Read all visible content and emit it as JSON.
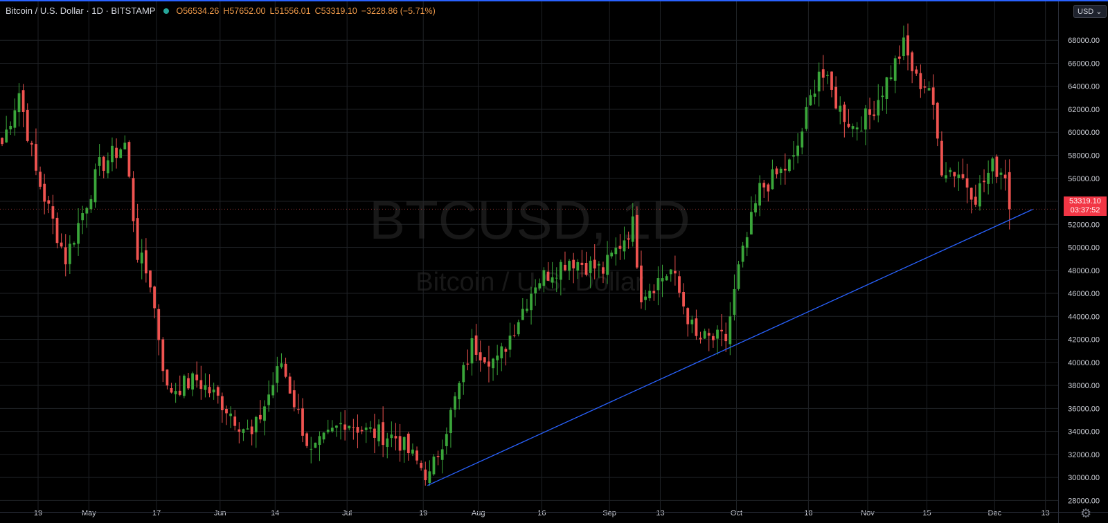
{
  "header": {
    "symbol_title": "Bitcoin / U.S. Dollar · 1D · BITSTAMP",
    "open": "O56534.26",
    "high": "H57652.00",
    "low": "L51556.01",
    "close": "C53319.10",
    "change": "−3228.86 (−5.71%)"
  },
  "currency_button": "USD",
  "watermark": {
    "main": "BTCUSD, 1D",
    "sub": "Bitcoin / U.S. Dollar"
  },
  "last_price": {
    "value": "53319.10",
    "countdown": "03:37:52"
  },
  "colors": {
    "up": "#26a69a",
    "up_body": "#3aa63a",
    "down": "#ef5350",
    "trendline": "#2962ff",
    "grid": "#1f2226",
    "axis_text": "#d1d4dc"
  },
  "chart_data": {
    "type": "candlestick",
    "title": "Bitcoin / U.S. Dollar, 1D, BITSTAMP",
    "x_ticks": [
      "19",
      "May",
      "17",
      "Jun",
      "14",
      "Jul",
      "19",
      "Aug",
      "16",
      "Sep",
      "13",
      "Oct",
      "18",
      "Nov",
      "15",
      "Dec",
      "13"
    ],
    "y_ticks": [
      "28000.00",
      "30000.00",
      "32000.00",
      "34000.00",
      "36000.00",
      "38000.00",
      "40000.00",
      "42000.00",
      "44000.00",
      "46000.00",
      "48000.00",
      "50000.00",
      "52000.00",
      "54000.00",
      "56000.00",
      "58000.00",
      "60000.00",
      "62000.00",
      "64000.00",
      "66000.00",
      "68000.00"
    ],
    "ylim": [
      27000,
      71500
    ],
    "date_range": [
      "2021-04-10",
      "2021-12-16"
    ],
    "grid": true,
    "anchors": [
      [
        "2021-04-10",
        59000
      ],
      [
        "2021-04-14",
        63500
      ],
      [
        "2021-04-18",
        56500
      ],
      [
        "2021-04-25",
        49000
      ],
      [
        "2021-05-03",
        57000
      ],
      [
        "2021-05-09",
        59000
      ],
      [
        "2021-05-12",
        49500
      ],
      [
        "2021-05-15",
        47000
      ],
      [
        "2021-05-19",
        37500
      ],
      [
        "2021-05-26",
        38500
      ],
      [
        "2021-06-01",
        36500
      ],
      [
        "2021-06-08",
        33500
      ],
      [
        "2021-06-15",
        40000
      ],
      [
        "2021-06-22",
        32000
      ],
      [
        "2021-06-30",
        35000
      ],
      [
        "2021-07-05",
        34000
      ],
      [
        "2021-07-12",
        33500
      ],
      [
        "2021-07-20",
        30000
      ],
      [
        "2021-07-25",
        35500
      ],
      [
        "2021-07-30",
        41500
      ],
      [
        "2021-08-05",
        40000
      ],
      [
        "2021-08-14",
        47000
      ],
      [
        "2021-08-22",
        49000
      ],
      [
        "2021-08-30",
        48000
      ],
      [
        "2021-09-06",
        52000
      ],
      [
        "2021-09-08",
        46000
      ],
      [
        "2021-09-15",
        48000
      ],
      [
        "2021-09-21",
        42000
      ],
      [
        "2021-09-28",
        42000
      ],
      [
        "2021-10-01",
        48000
      ],
      [
        "2021-10-06",
        55000
      ],
      [
        "2021-10-14",
        57500
      ],
      [
        "2021-10-20",
        65500
      ],
      [
        "2021-10-25",
        62000
      ],
      [
        "2021-10-28",
        60500
      ],
      [
        "2021-11-01",
        61500
      ],
      [
        "2021-11-09",
        67500
      ],
      [
        "2021-11-12",
        64500
      ],
      [
        "2021-11-15",
        64000
      ],
      [
        "2021-11-18",
        57000
      ],
      [
        "2021-11-22",
        56500
      ],
      [
        "2021-11-26",
        54500
      ],
      [
        "2021-11-30",
        57000
      ],
      [
        "2021-12-03",
        56500
      ],
      [
        "2021-12-04",
        53319.1
      ]
    ],
    "last_candle": {
      "date": "2021-12-04",
      "open": 56534.26,
      "high": 57652.0,
      "low": 51556.01,
      "close": 53319.1
    },
    "trendline": {
      "from": [
        "2021-07-20",
        29300
      ],
      "to": [
        "2021-12-10",
        53300
      ]
    }
  }
}
